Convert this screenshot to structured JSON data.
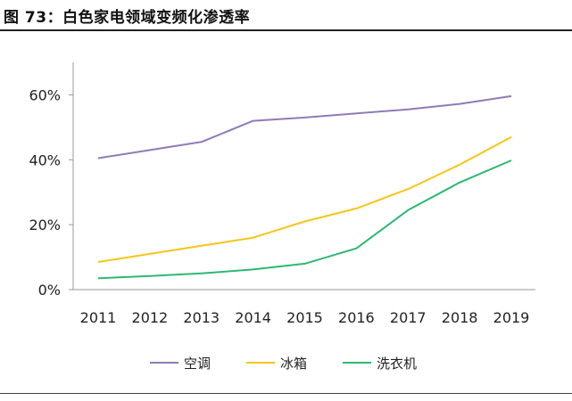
{
  "page": {
    "title": "图 73：白色家电领域变频化渗透率"
  },
  "chart_data": {
    "type": "line",
    "title": "",
    "xlabel": "",
    "ylabel": "",
    "x": [
      "2011",
      "2012",
      "2013",
      "2014",
      "2015",
      "2016",
      "2017",
      "2018",
      "2019"
    ],
    "ylim": [
      0,
      0.7
    ],
    "yticks": [
      0,
      0.2,
      0.4,
      0.6
    ],
    "ytick_labels": [
      "0%",
      "20%",
      "40%",
      "60%"
    ],
    "grid": false,
    "legend_position": "bottom",
    "series": [
      {
        "name": "空调",
        "color": "#8F7BB5",
        "values": [
          0.405,
          0.43,
          0.455,
          0.52,
          0.53,
          0.543,
          0.555,
          0.572,
          0.596
        ]
      },
      {
        "name": "冰箱",
        "color": "#F5C518",
        "values": [
          0.085,
          0.11,
          0.135,
          0.16,
          0.21,
          0.25,
          0.31,
          0.385,
          0.47
        ]
      },
      {
        "name": "洗衣机",
        "color": "#2DB872",
        "values": [
          0.035,
          0.042,
          0.05,
          0.062,
          0.08,
          0.127,
          0.245,
          0.33,
          0.398
        ]
      }
    ]
  }
}
